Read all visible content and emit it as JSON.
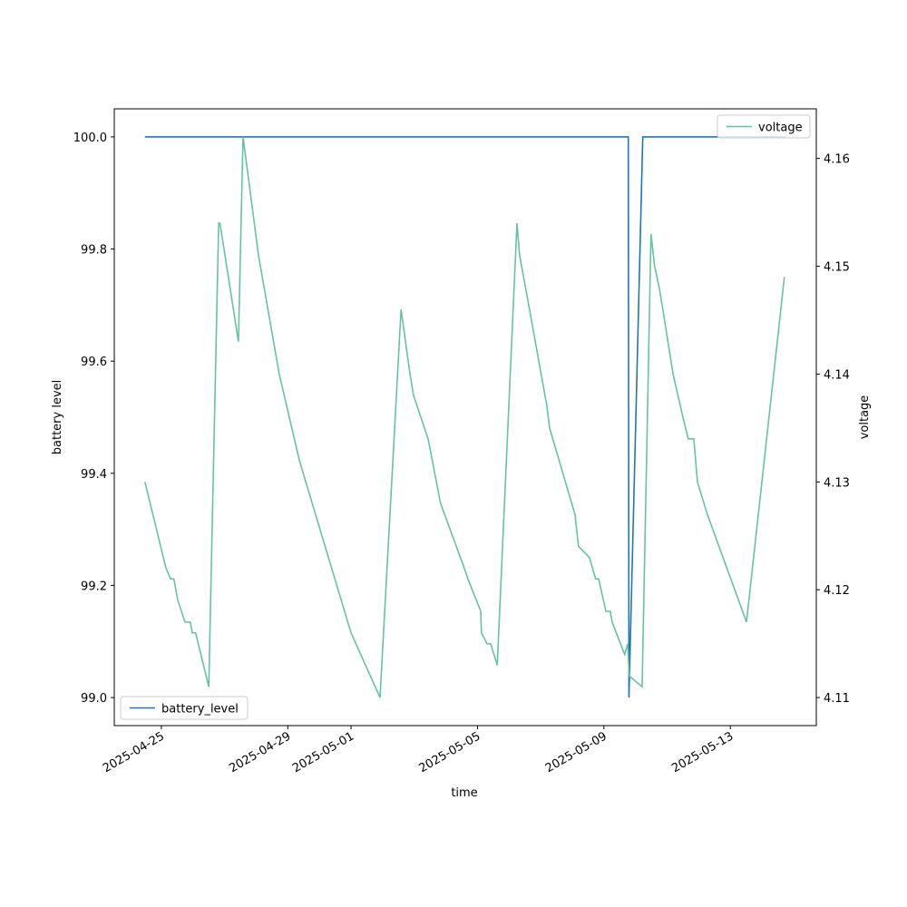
{
  "chart_data": {
    "type": "line",
    "xlabel": "time",
    "ylabel": "battery level",
    "y2label": "voltage",
    "xlim": [
      "2025-04-23 12:15",
      "2025-05-15 17:15"
    ],
    "xticks": [
      "2025-04-25",
      "2025-04-29",
      "2025-05-01",
      "2025-05-05",
      "2025-05-09",
      "2025-05-13"
    ],
    "ylim": [
      98.95,
      100.05
    ],
    "yticks": [
      {
        "value": 99.0,
        "label": "99.0"
      },
      99.2,
      99.4,
      99.6,
      99.8,
      {
        "value": 100.0,
        "label": "100.0"
      }
    ],
    "y2lim": [
      4.1074,
      4.1646
    ],
    "y2ticks": [
      4.11,
      4.12,
      4.13,
      4.14,
      4.15,
      4.16
    ],
    "legend": "lower left",
    "legend_y2": "upper right",
    "series": [
      {
        "name": "battery_level",
        "color": "#1f77b4",
        "x": [
          "2025-04-24 11:30",
          "2025-05-09 18:30",
          "2025-05-09 19:00",
          "2025-05-10 05:30",
          "2025-05-14 17:45"
        ],
        "values": [
          100,
          100,
          99,
          100,
          100
        ]
      },
      {
        "name": "voltage",
        "color": "#66c2a5",
        "axis": "y2",
        "x": [
          "2025-04-24 11:30",
          "2025-04-25 03:30",
          "2025-04-25 07:00",
          "2025-04-25 09:30",
          "2025-04-25 12:30",
          "2025-04-25 18:00",
          "2025-04-25 22:00",
          "2025-04-25 23:30",
          "2025-04-26 02:00",
          "2025-04-26 12:00",
          "2025-04-26 19:30",
          "2025-04-26 20:30",
          "2025-04-27 10:30",
          "2025-04-27 14:00",
          "2025-04-28 01:45",
          "2025-04-28 17:30",
          "2025-04-29 08:45",
          "2025-05-01 00:00",
          "2025-05-01 22:00",
          "2025-05-02 14:00",
          "2025-05-02 20:45",
          "2025-05-02 23:30",
          "2025-05-03 10:30",
          "2025-05-03 20:00",
          "2025-05-04 14:00",
          "2025-05-04 16:45",
          "2025-05-05 02:30",
          "2025-05-05 03:00",
          "2025-05-05 07:15",
          "2025-05-05 10:00",
          "2025-05-05 15:00",
          "2025-05-06 06:00",
          "2025-05-06 08:00",
          "2025-05-06 15:30",
          "2025-05-07 04:45",
          "2025-05-07 06:45",
          "2025-05-08 02:00",
          "2025-05-08 04:45",
          "2025-05-08 13:00",
          "2025-05-08 17:45",
          "2025-05-08 20:00",
          "2025-05-09 01:30",
          "2025-05-09 04:45",
          "2025-05-09 06:15",
          "2025-05-09 15:45",
          "2025-05-09 18:00",
          "2025-05-09 19:15",
          "2025-05-10 05:00",
          "2025-05-10 11:45",
          "2025-05-10 14:30",
          "2025-05-10 18:00",
          "2025-05-10 20:45",
          "2025-05-11 04:30",
          "2025-05-11 12:00",
          "2025-05-11 16:00",
          "2025-05-11 20:15",
          "2025-05-11 23:00",
          "2025-05-12 06:30",
          "2025-05-13 12:15",
          "2025-05-14 17:00"
        ],
        "values": [
          4.13,
          4.122,
          4.121,
          4.121,
          4.119,
          4.117,
          4.117,
          4.116,
          4.116,
          4.111,
          4.154,
          4.154,
          4.143,
          4.162,
          4.151,
          4.14,
          4.132,
          4.116,
          4.11,
          4.146,
          4.14,
          4.138,
          4.134,
          4.128,
          4.122,
          4.121,
          4.118,
          4.116,
          4.115,
          4.115,
          4.113,
          4.154,
          4.151,
          4.146,
          4.137,
          4.135,
          4.127,
          4.124,
          4.123,
          4.121,
          4.121,
          4.118,
          4.118,
          4.117,
          4.114,
          4.115,
          4.112,
          4.111,
          4.153,
          4.15,
          4.148,
          4.146,
          4.14,
          4.136,
          4.134,
          4.134,
          4.13,
          4.127,
          4.117,
          4.149
        ]
      }
    ]
  }
}
